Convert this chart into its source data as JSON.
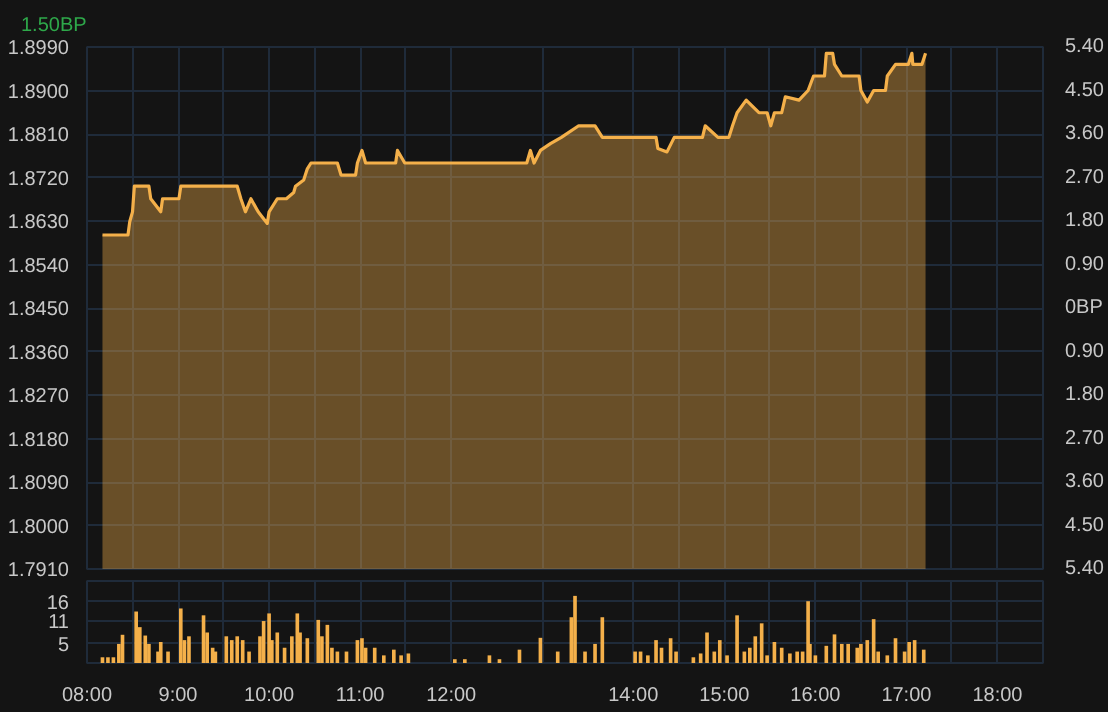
{
  "chart_data": [
    {
      "type": "area",
      "annotations": [
        "1.50BP"
      ],
      "grid": true,
      "tick_labels": "y",
      "xlim": [
        8,
        18.5
      ],
      "xticks": [
        {
          "value": 8,
          "label": null
        },
        {
          "value": 8.5,
          "label": null
        },
        {
          "value": 9,
          "label": null
        },
        {
          "value": 9.5,
          "label": null
        },
        {
          "value": 10,
          "label": null
        },
        {
          "value": 10.5,
          "label": null
        },
        {
          "value": 11,
          "label": null
        },
        {
          "value": 11.5,
          "label": null
        },
        {
          "value": 12,
          "label": null
        },
        {
          "value": 13,
          "label": null
        },
        {
          "value": 14,
          "label": null
        },
        {
          "value": 14.5,
          "label": null
        },
        {
          "value": 15,
          "label": null
        },
        {
          "value": 15.5,
          "label": null
        },
        {
          "value": 16,
          "label": null
        },
        {
          "value": 16.5,
          "label": null
        },
        {
          "value": 17,
          "label": null
        },
        {
          "value": 17.5,
          "label": null
        },
        {
          "value": 18,
          "label": null
        }
      ],
      "ylim": [
        1.791,
        1.899
      ],
      "yticks": [
        {
          "value": 1.791,
          "label": "1.7910"
        },
        {
          "value": 1.8,
          "label": "1.8000"
        },
        {
          "value": 1.809,
          "label": "1.8090"
        },
        {
          "value": 1.818,
          "label": "1.8180"
        },
        {
          "value": 1.827,
          "label": "1.8270"
        },
        {
          "value": 1.836,
          "label": "1.8360"
        },
        {
          "value": 1.845,
          "label": "1.8450"
        },
        {
          "value": 1.854,
          "label": "1.8540"
        },
        {
          "value": 1.863,
          "label": "1.8630"
        },
        {
          "value": 1.872,
          "label": "1.8720"
        },
        {
          "value": 1.881,
          "label": "1.8810"
        },
        {
          "value": 1.89,
          "label": "1.8900"
        },
        {
          "value": 1.899,
          "label": "1.8990"
        }
      ],
      "y2lim": [
        -5.4,
        5.4
      ],
      "y2ticks": [
        {
          "value": -5.4,
          "label": "5.40"
        },
        {
          "value": -4.5,
          "label": "4.50"
        },
        {
          "value": -3.6,
          "label": "3.60"
        },
        {
          "value": -2.7,
          "label": "2.70"
        },
        {
          "value": -1.8,
          "label": "1.80"
        },
        {
          "value": -0.9,
          "label": "0.90"
        },
        {
          "value": 0,
          "label": "0BP"
        },
        {
          "value": 0.9,
          "label": "0.90"
        },
        {
          "value": 1.8,
          "label": "1.80"
        },
        {
          "value": 2.7,
          "label": "2.70"
        },
        {
          "value": 3.6,
          "label": "3.60"
        },
        {
          "value": 4.5,
          "label": "4.50"
        },
        {
          "value": 5.4,
          "label": "5.40"
        }
      ],
      "series": [
        {
          "color": "#f4b04a",
          "x": [
            8.17,
            8.45,
            8.47,
            8.5,
            8.52,
            8.68,
            8.7,
            8.81,
            8.83,
            9.01,
            9.03,
            9.65,
            9.69,
            9.74,
            9.8,
            9.88,
            9.98,
            10.0,
            10.09,
            10.19,
            10.27,
            10.29,
            10.38,
            10.42,
            10.46,
            10.75,
            10.79,
            10.95,
            10.97,
            11.02,
            11.06,
            11.39,
            11.41,
            11.49,
            12.83,
            12.87,
            12.91,
            12.98,
            13.09,
            13.21,
            13.4,
            13.58,
            13.66,
            14.25,
            14.27,
            14.37,
            14.45,
            14.76,
            14.79,
            14.93,
            15.05,
            15.09,
            15.14,
            15.24,
            15.38,
            15.47,
            15.51,
            15.55,
            15.63,
            15.67,
            15.82,
            15.92,
            15.98,
            16.1,
            16.12,
            16.19,
            16.21,
            16.29,
            16.48,
            16.5,
            16.57,
            16.64,
            16.77,
            16.79,
            16.88,
            17.02,
            17.06,
            17.07,
            17.17,
            17.21
          ],
          "values": [
            1.8601,
            1.8601,
            1.8629,
            1.8649,
            1.8702,
            1.8702,
            1.8676,
            1.8649,
            1.8676,
            1.8676,
            1.8702,
            1.8702,
            1.8676,
            1.8649,
            1.8676,
            1.8649,
            1.8625,
            1.8649,
            1.8676,
            1.8676,
            1.8689,
            1.8702,
            1.8715,
            1.8738,
            1.875,
            1.875,
            1.8725,
            1.8725,
            1.875,
            1.8776,
            1.875,
            1.875,
            1.8776,
            1.875,
            1.875,
            1.8776,
            1.875,
            1.8776,
            1.879,
            1.8803,
            1.8827,
            1.8827,
            1.8803,
            1.8803,
            1.878,
            1.8773,
            1.8803,
            1.8803,
            1.8827,
            1.8803,
            1.8803,
            1.8827,
            1.8854,
            1.888,
            1.8854,
            1.8854,
            1.8827,
            1.8854,
            1.8854,
            1.8887,
            1.888,
            1.89,
            1.893,
            1.893,
            1.8977,
            1.8977,
            1.8954,
            1.893,
            1.893,
            1.89,
            1.8876,
            1.89,
            1.89,
            1.893,
            1.8954,
            1.8954,
            1.8977,
            1.8954,
            1.8954,
            1.8977
          ]
        }
      ]
    },
    {
      "type": "bar",
      "grid": true,
      "color": "#f4b04a",
      "xlim": [
        8,
        18.5
      ],
      "xticks": [
        {
          "value": 8,
          "label": "08:00"
        },
        {
          "value": 8.5,
          "label": null
        },
        {
          "value": 9,
          "label": "9:00"
        },
        {
          "value": 9.5,
          "label": null
        },
        {
          "value": 10,
          "label": "10:00"
        },
        {
          "value": 10.5,
          "label": null
        },
        {
          "value": 11,
          "label": "11:00"
        },
        {
          "value": 11.5,
          "label": null
        },
        {
          "value": 12,
          "label": "12:00"
        },
        {
          "value": 13,
          "label": null
        },
        {
          "value": 14,
          "label": "14:00"
        },
        {
          "value": 14.5,
          "label": null
        },
        {
          "value": 15,
          "label": "15:00"
        },
        {
          "value": 15.5,
          "label": null
        },
        {
          "value": 16,
          "label": "16:00"
        },
        {
          "value": 16.5,
          "label": null
        },
        {
          "value": 17,
          "label": "17:00"
        },
        {
          "value": 17.5,
          "label": null
        },
        {
          "value": 18,
          "label": "18:00"
        }
      ],
      "ylim": [
        0,
        21.5
      ],
      "yticks": [
        5,
        11,
        16
      ],
      "x": [
        8.17,
        8.23,
        8.29,
        8.35,
        8.39,
        8.54,
        8.58,
        8.64,
        8.68,
        8.78,
        8.81,
        8.89,
        9.03,
        9.07,
        9.12,
        9.28,
        9.32,
        9.38,
        9.41,
        9.53,
        9.59,
        9.65,
        9.71,
        9.78,
        9.9,
        9.94,
        10.0,
        10.03,
        10.09,
        10.17,
        10.25,
        10.31,
        10.34,
        10.42,
        10.54,
        10.58,
        10.64,
        10.69,
        10.75,
        10.85,
        10.97,
        11.02,
        11.06,
        11.16,
        11.26,
        11.37,
        11.45,
        11.53,
        12.04,
        12.15,
        12.42,
        12.53,
        12.75,
        12.98,
        13.17,
        13.32,
        13.36,
        13.47,
        13.58,
        13.66,
        14.02,
        14.08,
        14.16,
        14.25,
        14.31,
        14.41,
        14.47,
        14.66,
        14.74,
        14.81,
        14.89,
        14.95,
        15.03,
        15.14,
        15.22,
        15.28,
        15.34,
        15.41,
        15.47,
        15.55,
        15.63,
        15.72,
        15.8,
        15.86,
        15.92,
        15.94,
        16.0,
        16.12,
        16.21,
        16.29,
        16.36,
        16.46,
        16.5,
        16.57,
        16.64,
        16.69,
        16.79,
        16.88,
        16.98,
        17.03,
        17.09,
        17.19
      ],
      "values": [
        1.5,
        1.5,
        1.5,
        5,
        7.4,
        13.5,
        9.4,
        7.2,
        5,
        3,
        5.5,
        3,
        14.3,
        6,
        7,
        12.5,
        8,
        4,
        3,
        7,
        6,
        7,
        6,
        3,
        7,
        11,
        13,
        6,
        8,
        4,
        7,
        13,
        8,
        6.5,
        11.3,
        7,
        10,
        4,
        3,
        3,
        6,
        6.5,
        4,
        4,
        2,
        3.5,
        2,
        2.5,
        1,
        1,
        2,
        1,
        3.5,
        6.6,
        3,
        12,
        17.6,
        3,
        5,
        12,
        3,
        3,
        2,
        6,
        4,
        6.5,
        3,
        1.5,
        2.5,
        8,
        3,
        6,
        2,
        12.5,
        3,
        4,
        7,
        10.4,
        2,
        5.5,
        4,
        2.5,
        3,
        3,
        16.2,
        5,
        2,
        4.5,
        7.5,
        5,
        5,
        4,
        5,
        6,
        11.5,
        3,
        2,
        6.5,
        3,
        5.5,
        6,
        3.5
      ]
    }
  ]
}
